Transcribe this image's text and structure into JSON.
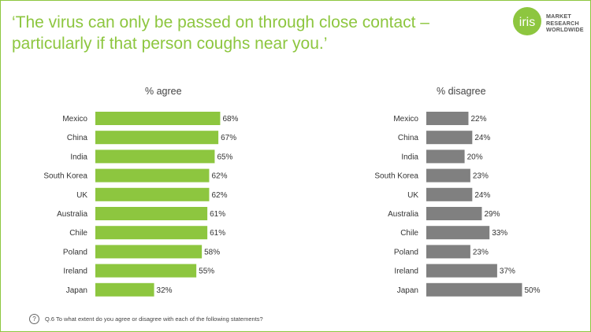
{
  "title": "‘The virus can only be passed on through close contact – particularly if that person coughs near you.’",
  "logo": {
    "wordmark": "iris",
    "lines": [
      "MARKET",
      "RESEARCH",
      "WORLDWIDE"
    ]
  },
  "colors": {
    "accent": "#8dc63f",
    "agree_bar": "#8dc63f",
    "disagree_bar": "#808080"
  },
  "footer": {
    "icon": "question-circle-icon",
    "text": "Q.6 To what extent do you agree or disagree with each of the following statements?"
  },
  "chart_data": [
    {
      "type": "bar",
      "orientation": "horizontal",
      "title": "% agree",
      "categories": [
        "Mexico",
        "China",
        "India",
        "South Korea",
        "UK",
        "Australia",
        "Chile",
        "Poland",
        "Ireland",
        "Japan"
      ],
      "values": [
        68,
        67,
        65,
        62,
        62,
        61,
        61,
        58,
        55,
        32
      ],
      "value_suffix": "%",
      "xlim": [
        0,
        100
      ],
      "grid": false
    },
    {
      "type": "bar",
      "orientation": "horizontal",
      "title": "% disagree",
      "categories": [
        "Mexico",
        "China",
        "India",
        "South Korea",
        "UK",
        "Australia",
        "Chile",
        "Poland",
        "Ireland",
        "Japan"
      ],
      "values": [
        22,
        24,
        20,
        23,
        24,
        29,
        33,
        23,
        37,
        50
      ],
      "value_suffix": "%",
      "xlim": [
        0,
        100
      ],
      "grid": false
    }
  ]
}
